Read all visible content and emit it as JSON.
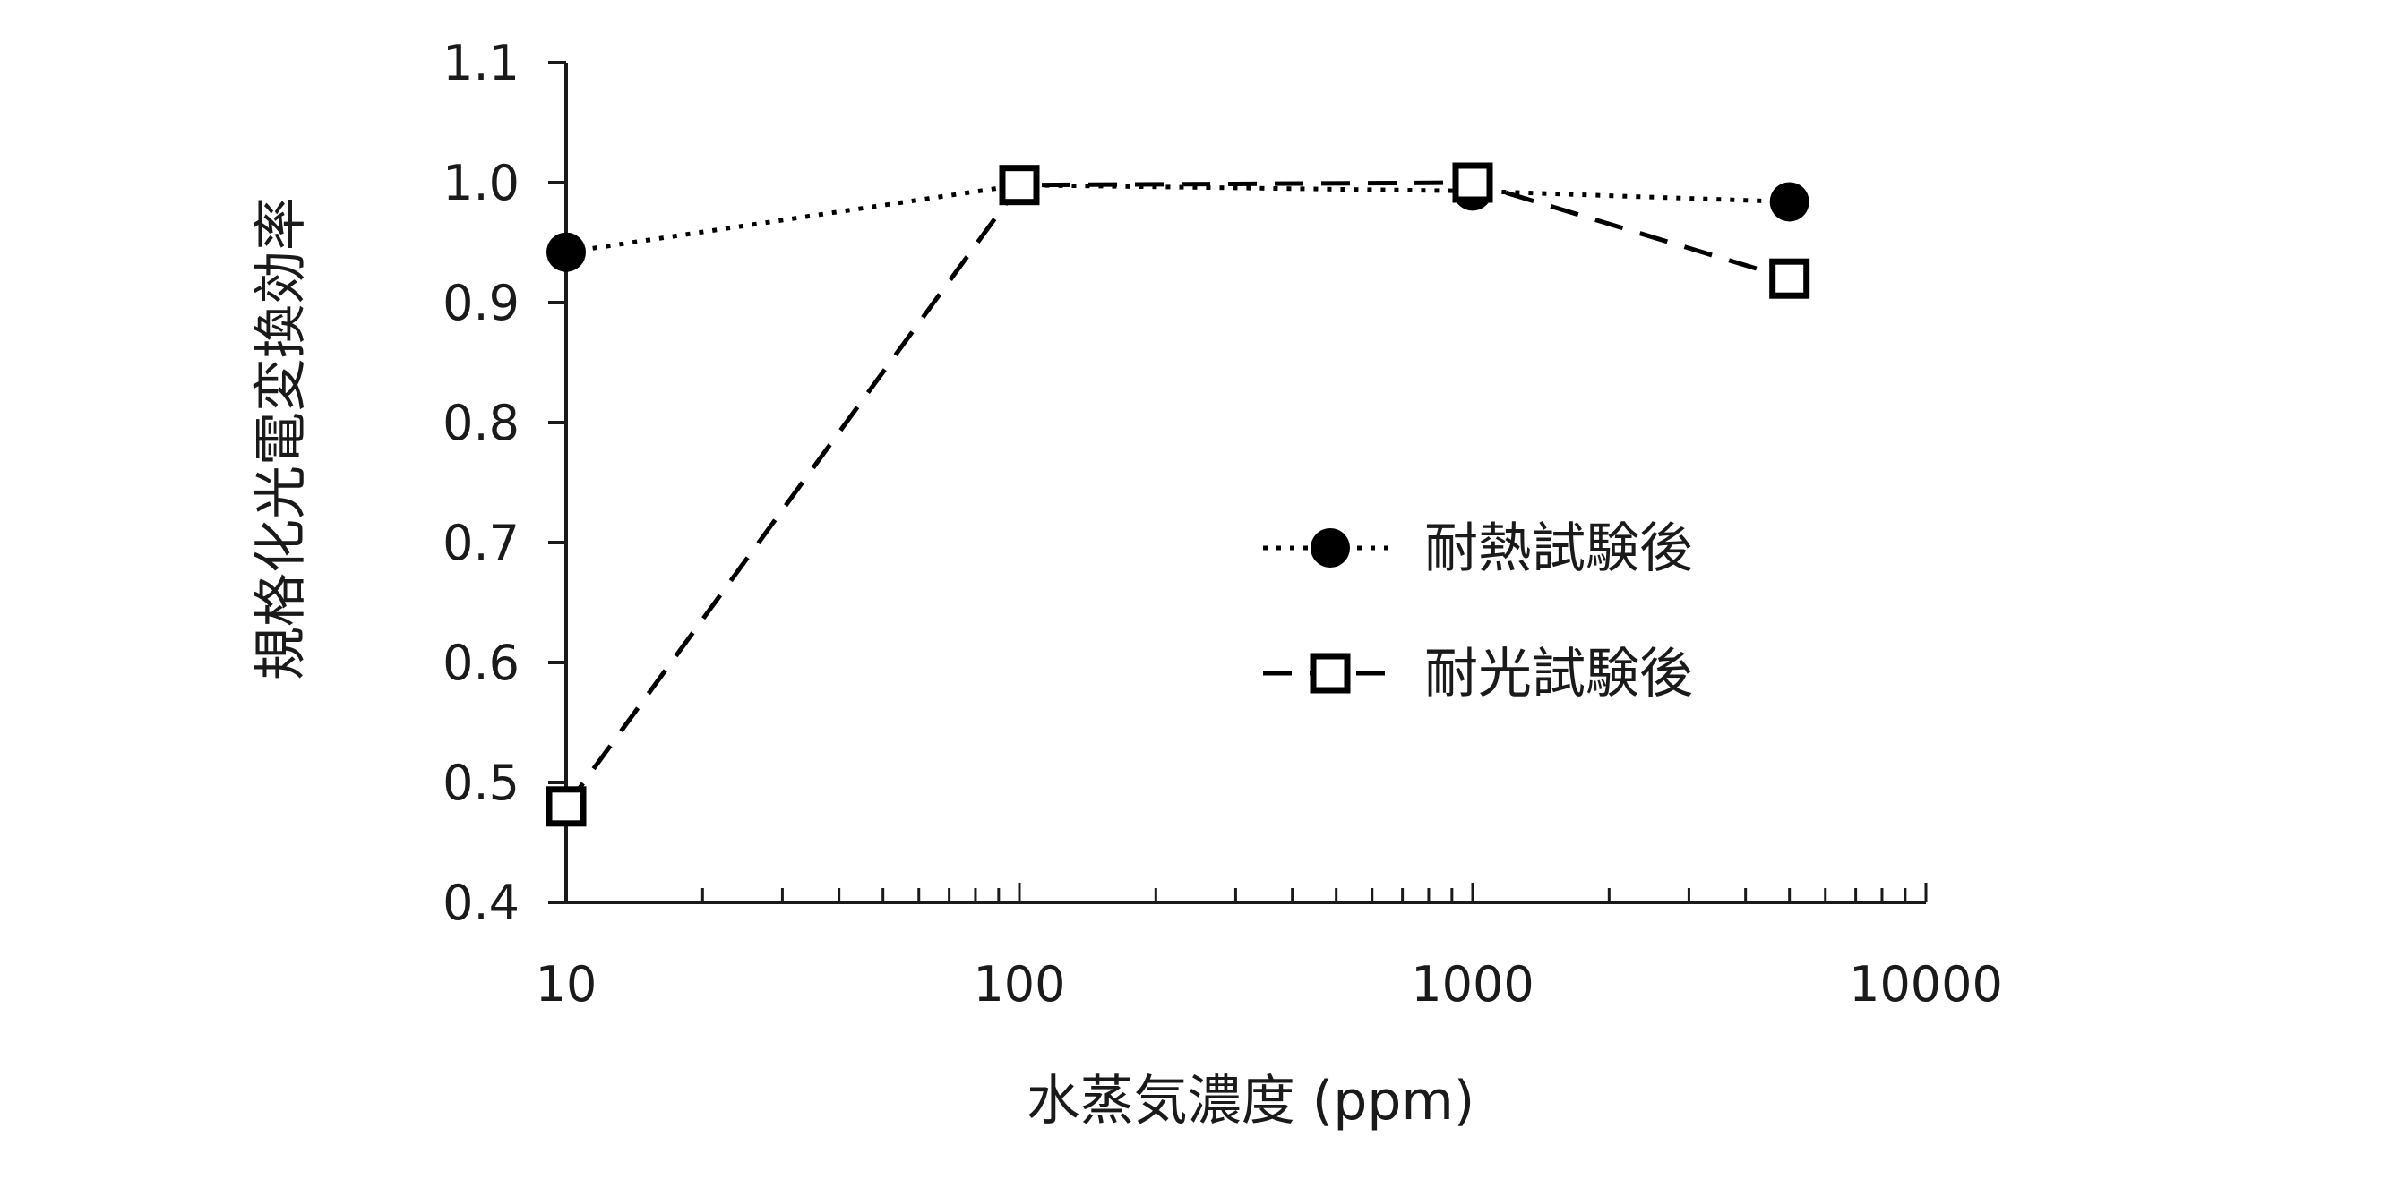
{
  "chart_data": {
    "type": "line",
    "xlabel": "水蒸気濃度 (ppm)",
    "ylabel": "規格化光電変換効率",
    "x_scale": "log",
    "xlim": [
      10,
      10000
    ],
    "ylim": [
      0.4,
      1.1
    ],
    "x_ticks": [
      "10",
      "100",
      "1000",
      "10000"
    ],
    "y_ticks": [
      "0.4",
      "0.5",
      "0.6",
      "0.7",
      "0.8",
      "0.9",
      "1.0",
      "1.1"
    ],
    "grid": false,
    "legend_position": "right-center",
    "series": [
      {
        "name": "耐熱試験後",
        "marker": "filled-circle",
        "line_style": "dotted",
        "color": "#000000",
        "x": [
          10,
          100,
          1000,
          5000
        ],
        "y": [
          0.942,
          0.998,
          0.993,
          0.984
        ]
      },
      {
        "name": "耐光試験後",
        "marker": "open-square",
        "line_style": "dashed",
        "color": "#000000",
        "x": [
          10,
          100,
          1000,
          5000
        ],
        "y": [
          0.48,
          0.998,
          1.0,
          0.92
        ]
      }
    ]
  }
}
